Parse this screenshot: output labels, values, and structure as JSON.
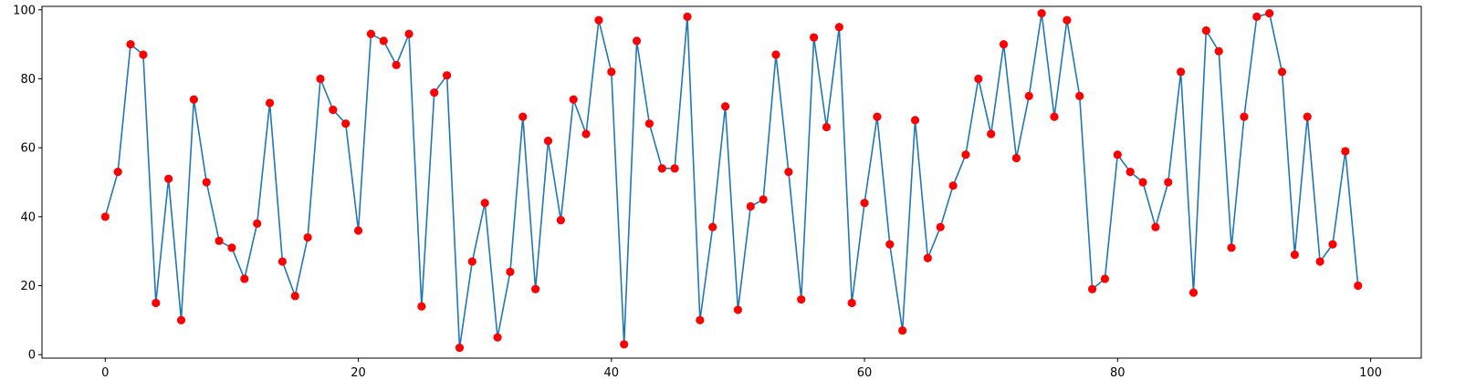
{
  "chart_data": {
    "type": "line",
    "title": "",
    "xlabel": "",
    "ylabel": "",
    "xlim": [
      -5,
      104
    ],
    "ylim": [
      -1,
      101
    ],
    "x_ticks": [
      0,
      20,
      40,
      60,
      80,
      100
    ],
    "x_tick_labels": [
      "0",
      "20",
      "40",
      "60",
      "80",
      "100"
    ],
    "y_ticks": [
      0,
      20,
      40,
      60,
      80,
      100
    ],
    "y_tick_labels": [
      "0",
      "20",
      "40",
      "60",
      "80",
      "100"
    ],
    "grid": false,
    "line_color": "#1f77b4",
    "marker_color": "#ff0000",
    "series": [
      {
        "values": [
          40,
          53,
          90,
          87,
          15,
          51,
          10,
          74,
          50,
          33,
          31,
          22,
          38,
          73,
          27,
          17,
          34,
          80,
          71,
          67,
          36,
          93,
          91,
          84,
          93,
          14,
          76,
          81,
          2,
          27,
          44,
          5,
          24,
          69,
          19,
          62,
          39,
          74,
          64,
          97,
          82,
          3,
          91,
          67,
          54,
          54,
          98,
          10,
          37,
          72,
          13,
          43,
          45,
          87,
          53,
          16,
          92,
          66,
          95,
          15,
          44,
          69,
          32,
          7,
          68,
          28,
          37,
          49,
          58,
          80,
          64,
          90,
          57,
          75,
          99,
          69,
          97,
          75,
          19,
          22,
          58,
          53,
          50,
          37,
          50,
          82,
          18,
          94,
          88,
          31,
          69,
          98,
          99,
          82,
          29,
          69,
          27,
          32,
          59,
          20
        ]
      }
    ]
  }
}
